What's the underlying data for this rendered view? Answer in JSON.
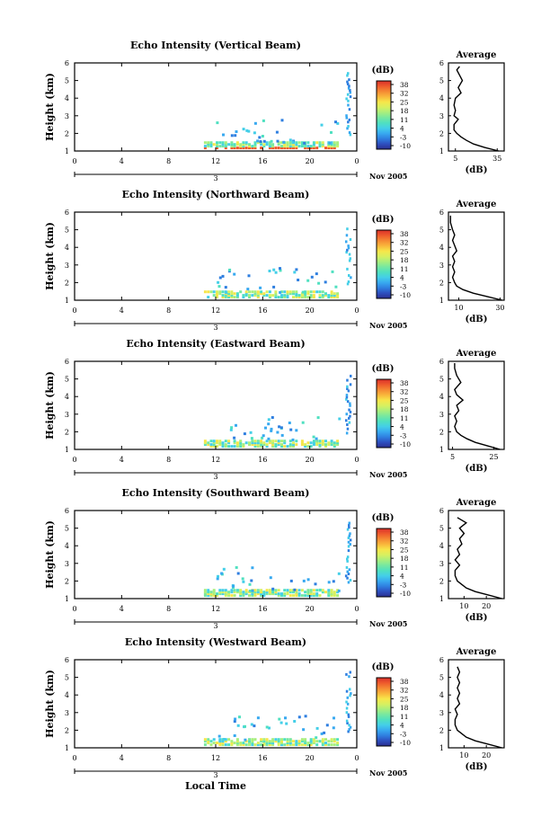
{
  "figure": {
    "bottom_xlabel": "Local Time"
  },
  "colorbar": {
    "label": "(dB)",
    "ticks": [
      "38",
      "32",
      "25",
      "18",
      "11",
      "4",
      "-3",
      "-10"
    ],
    "colors": [
      "#2b2f8f",
      "#2e4fbf",
      "#2f7fe0",
      "#38a9f0",
      "#44cfe8",
      "#4fe0c0",
      "#77e8a0",
      "#a8ef7e",
      "#d8f060",
      "#f7e64a",
      "#f9b73c",
      "#f58a33",
      "#ee5a2c",
      "#d9302a"
    ]
  },
  "sample_color": "#000000",
  "chart_data": [
    {
      "type": "heatmap",
      "title": "Echo Intensity (Vertical Beam)",
      "ylabel": "Height (km)",
      "ylim": [
        1,
        6
      ],
      "xlim": [
        0,
        24
      ],
      "xticks": [
        "0",
        "4",
        "8",
        "12",
        "16",
        "20",
        "0"
      ],
      "date_label": "3",
      "date_suffix": "Nov 2005",
      "average": {
        "title": "Average",
        "xlabel": "(dB)",
        "xticks": [
          "5",
          "35"
        ],
        "xlim": [
          0,
          40
        ],
        "profile": [
          {
            "h": 1.0,
            "db": 36
          },
          {
            "h": 1.2,
            "db": 26
          },
          {
            "h": 1.4,
            "db": 18
          },
          {
            "h": 1.6,
            "db": 13
          },
          {
            "h": 1.8,
            "db": 9
          },
          {
            "h": 2.0,
            "db": 6
          },
          {
            "h": 2.2,
            "db": 4
          },
          {
            "h": 2.5,
            "db": 4
          },
          {
            "h": 2.8,
            "db": 7
          },
          {
            "h": 3.0,
            "db": 4
          },
          {
            "h": 3.3,
            "db": 5
          },
          {
            "h": 3.6,
            "db": 4
          },
          {
            "h": 4.0,
            "db": 5
          },
          {
            "h": 4.3,
            "db": 9
          },
          {
            "h": 4.6,
            "db": 7
          },
          {
            "h": 5.0,
            "db": 10
          },
          {
            "h": 5.3,
            "db": 8
          },
          {
            "h": 5.6,
            "db": 6
          },
          {
            "h": 5.8,
            "db": 8
          }
        ]
      }
    },
    {
      "type": "heatmap",
      "title": "Echo Intensity (Northward Beam)",
      "ylabel": "Height (km)",
      "ylim": [
        1,
        6
      ],
      "xlim": [
        0,
        24
      ],
      "xticks": [
        "0",
        "4",
        "8",
        "12",
        "16",
        "20",
        "0"
      ],
      "date_label": "3",
      "date_suffix": "Nov 2005",
      "average": {
        "title": "Average",
        "xlabel": "(dB)",
        "xticks": [
          "10",
          "30"
        ],
        "xlim": [
          5,
          32
        ],
        "profile": [
          {
            "h": 1.0,
            "db": 31
          },
          {
            "h": 1.2,
            "db": 24
          },
          {
            "h": 1.4,
            "db": 17
          },
          {
            "h": 1.6,
            "db": 12
          },
          {
            "h": 1.8,
            "db": 9
          },
          {
            "h": 2.0,
            "db": 8
          },
          {
            "h": 2.3,
            "db": 7
          },
          {
            "h": 2.6,
            "db": 8
          },
          {
            "h": 2.9,
            "db": 7
          },
          {
            "h": 3.2,
            "db": 8
          },
          {
            "h": 3.5,
            "db": 7
          },
          {
            "h": 3.8,
            "db": 9
          },
          {
            "h": 4.1,
            "db": 8
          },
          {
            "h": 4.4,
            "db": 7
          },
          {
            "h": 4.7,
            "db": 8
          },
          {
            "h": 5.0,
            "db": 7
          },
          {
            "h": 5.4,
            "db": 6
          },
          {
            "h": 5.8,
            "db": 6
          }
        ]
      }
    },
    {
      "type": "heatmap",
      "title": "Echo Intensity (Eastward Beam)",
      "ylabel": "Height (km)",
      "ylim": [
        1,
        6
      ],
      "xlim": [
        0,
        24
      ],
      "xticks": [
        "0",
        "4",
        "8",
        "12",
        "16",
        "20",
        "0"
      ],
      "date_label": "3",
      "date_suffix": "Nov 2005",
      "average": {
        "title": "Average",
        "xlabel": "(dB)",
        "xticks": [
          "5",
          "25"
        ],
        "xlim": [
          3,
          30
        ],
        "profile": [
          {
            "h": 1.0,
            "db": 28
          },
          {
            "h": 1.2,
            "db": 22
          },
          {
            "h": 1.4,
            "db": 16
          },
          {
            "h": 1.6,
            "db": 12
          },
          {
            "h": 1.8,
            "db": 9
          },
          {
            "h": 2.0,
            "db": 7
          },
          {
            "h": 2.3,
            "db": 6
          },
          {
            "h": 2.6,
            "db": 7
          },
          {
            "h": 2.9,
            "db": 6
          },
          {
            "h": 3.2,
            "db": 8
          },
          {
            "h": 3.5,
            "db": 7
          },
          {
            "h": 3.8,
            "db": 10
          },
          {
            "h": 4.1,
            "db": 7
          },
          {
            "h": 4.4,
            "db": 6
          },
          {
            "h": 4.8,
            "db": 9
          },
          {
            "h": 5.2,
            "db": 7
          },
          {
            "h": 5.6,
            "db": 6
          },
          {
            "h": 5.9,
            "db": 6
          }
        ]
      }
    },
    {
      "type": "heatmap",
      "title": "Echo Intensity (Southward Beam)",
      "ylabel": "Height (km)",
      "ylim": [
        1,
        6
      ],
      "xlim": [
        0,
        24
      ],
      "xticks": [
        "0",
        "4",
        "8",
        "12",
        "16",
        "20",
        "0"
      ],
      "date_label": "3",
      "date_suffix": "Nov 2005",
      "average": {
        "title": "Average",
        "xlabel": "(dB)",
        "xticks": [
          "10",
          "20"
        ],
        "xlim": [
          3,
          28
        ],
        "profile": [
          {
            "h": 1.0,
            "db": 27
          },
          {
            "h": 1.2,
            "db": 21
          },
          {
            "h": 1.4,
            "db": 15
          },
          {
            "h": 1.6,
            "db": 11
          },
          {
            "h": 1.8,
            "db": 9
          },
          {
            "h": 2.0,
            "db": 7
          },
          {
            "h": 2.3,
            "db": 6
          },
          {
            "h": 2.6,
            "db": 6
          },
          {
            "h": 2.9,
            "db": 8
          },
          {
            "h": 3.2,
            "db": 6
          },
          {
            "h": 3.5,
            "db": 8
          },
          {
            "h": 3.8,
            "db": 7
          },
          {
            "h": 4.1,
            "db": 9
          },
          {
            "h": 4.4,
            "db": 8
          },
          {
            "h": 4.7,
            "db": 10
          },
          {
            "h": 5.0,
            "db": 8
          },
          {
            "h": 5.3,
            "db": 11
          },
          {
            "h": 5.6,
            "db": 7
          }
        ]
      }
    },
    {
      "type": "heatmap",
      "title": "Echo Intensity (Westward Beam)",
      "ylabel": "Height (km)",
      "ylim": [
        1,
        6
      ],
      "xlim": [
        0,
        24
      ],
      "xticks": [
        "0",
        "4",
        "8",
        "12",
        "16",
        "20",
        "0"
      ],
      "date_label": "3",
      "date_suffix": "Nov 2005",
      "average": {
        "title": "Average",
        "xlabel": "(dB)",
        "xticks": [
          "10",
          "20"
        ],
        "xlim": [
          3,
          28
        ],
        "profile": [
          {
            "h": 1.0,
            "db": 27
          },
          {
            "h": 1.2,
            "db": 21
          },
          {
            "h": 1.4,
            "db": 15
          },
          {
            "h": 1.6,
            "db": 11
          },
          {
            "h": 1.8,
            "db": 9
          },
          {
            "h": 2.0,
            "db": 7
          },
          {
            "h": 2.3,
            "db": 6
          },
          {
            "h": 2.6,
            "db": 6
          },
          {
            "h": 2.9,
            "db": 7
          },
          {
            "h": 3.2,
            "db": 6
          },
          {
            "h": 3.5,
            "db": 8
          },
          {
            "h": 3.8,
            "db": 7
          },
          {
            "h": 4.1,
            "db": 8
          },
          {
            "h": 4.4,
            "db": 7
          },
          {
            "h": 4.7,
            "db": 8
          },
          {
            "h": 5.0,
            "db": 7
          },
          {
            "h": 5.3,
            "db": 8
          },
          {
            "h": 5.6,
            "db": 7
          }
        ]
      }
    }
  ]
}
